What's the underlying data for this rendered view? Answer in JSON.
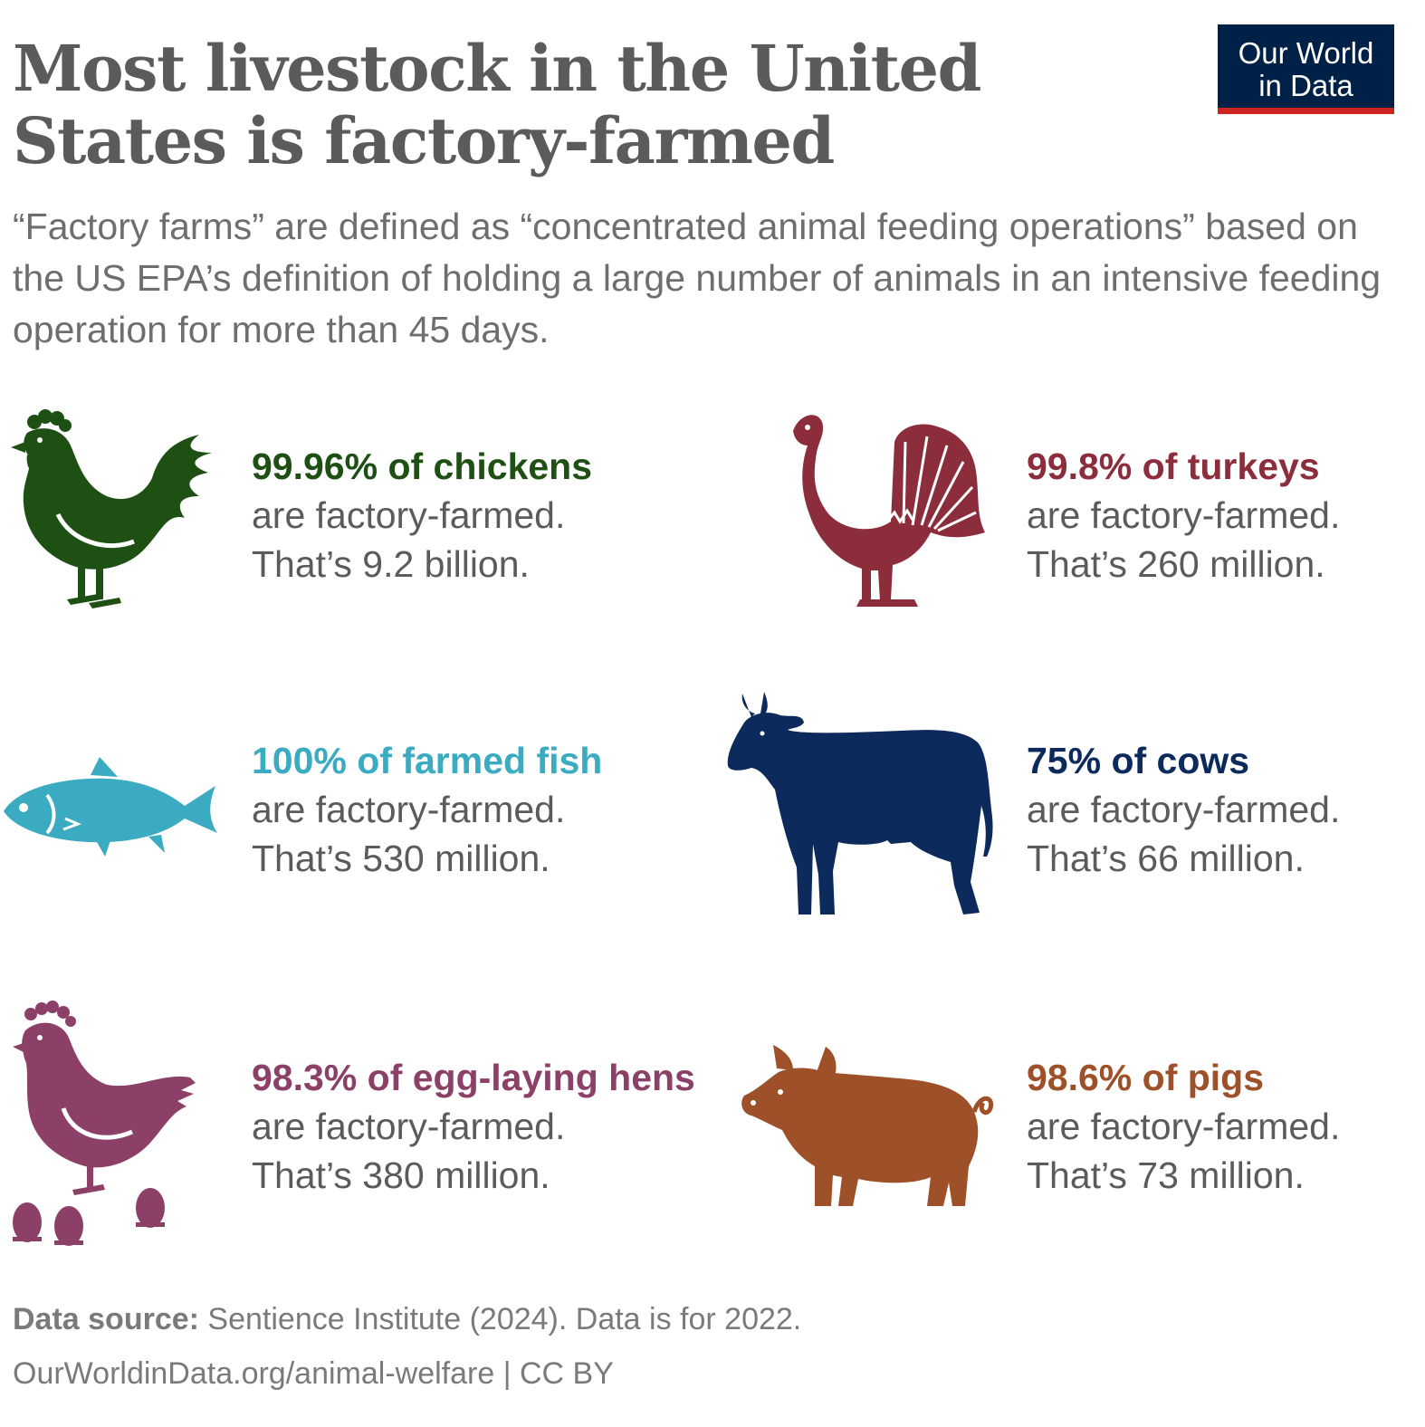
{
  "title": "Most livestock in the United States is factory-farmed",
  "logo": {
    "line1": "Our World",
    "line2": "in Data"
  },
  "subtitle": "“Factory farms” are defined as “concentrated animal feeding operations” based on the US EPA’s definition of holding a large number of animals in an intensive feeding operation for more than 45 days.",
  "colors": {
    "chickens": "#1e5014",
    "turkeys": "#8c2d3c",
    "fish": "#3aabc0",
    "cows": "#0d2a5c",
    "hens": "#8c4068",
    "pigs": "#9e5028"
  },
  "stats": {
    "chickens": {
      "headline": "99.96% of chickens",
      "line1": "are factory-farmed.",
      "line2": "That’s 9.2 billion.",
      "icon": "chicken-icon"
    },
    "turkeys": {
      "headline": "99.8% of turkeys",
      "line1": "are factory-farmed.",
      "line2": "That’s 260 million.",
      "icon": "turkey-icon"
    },
    "fish": {
      "headline": "100% of farmed fish",
      "line1": "are factory-farmed.",
      "line2": "That’s 530 million.",
      "icon": "fish-icon"
    },
    "cows": {
      "headline": "75% of cows",
      "line1": "are factory-farmed.",
      "line2": "That’s 66 million.",
      "icon": "cow-icon"
    },
    "hens": {
      "headline": "98.3% of egg-laying hens",
      "line1": "are factory-farmed.",
      "line2": "That’s 380 million.",
      "icon": "hen-icon"
    },
    "pigs": {
      "headline": "98.6% of pigs",
      "line1": "are factory-farmed.",
      "line2": "That’s 73 million.",
      "icon": "pig-icon"
    }
  },
  "footer": {
    "source_label": "Data source:",
    "source_text": " Sentience Institute (2024). Data is for 2022.",
    "url_license": "OurWorldinData.org/animal-welfare | CC BY"
  }
}
